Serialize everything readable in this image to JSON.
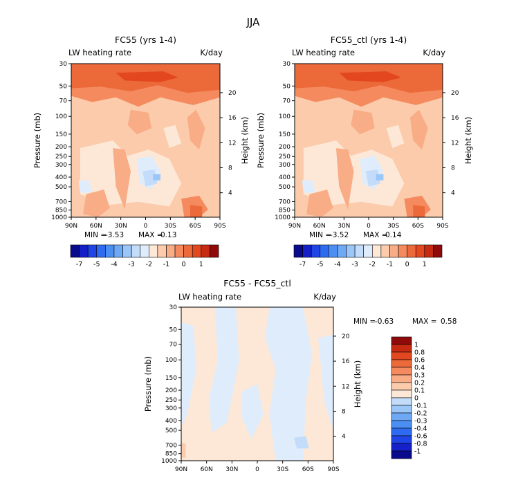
{
  "figure_title": "JJA",
  "colors": {
    "levels": [
      "#0a0a8c",
      "#1520c8",
      "#1f45e6",
      "#2f6bf0",
      "#4c8ff2",
      "#6ea9f5",
      "#9bc6f8",
      "#c3dcf9",
      "#dfecfb",
      "#fde8d7",
      "#fbcbab",
      "#f8ad86",
      "#f48a5e",
      "#ec6939",
      "#e3471f",
      "#c72a12",
      "#8f0a0a"
    ]
  },
  "chart_data": [
    {
      "type": "heatmap",
      "title": "FC55 (yrs 1-4)",
      "variable_label": "LW heating rate",
      "units_label": "K/day",
      "ylabel": "Pressure (mb)",
      "ylabel_right": "Height (km)",
      "x_ticks": [
        "90N",
        "60N",
        "30N",
        "0",
        "30S",
        "60S",
        "90S"
      ],
      "y_ticks": [
        "30",
        "50",
        "70",
        "100",
        "150",
        "200",
        "250",
        "300",
        "400",
        "500",
        "700",
        "850",
        "1000"
      ],
      "y_right_ticks": [
        "20",
        "16",
        "12",
        "8",
        "4"
      ],
      "ylim": [
        1000,
        30
      ],
      "stats": {
        "min_label": "MIN =",
        "min": "-3.53",
        "max_label": "MAX =",
        "max": "0.13"
      },
      "colorbar_labels": [
        "-7",
        "-5",
        "-4",
        "-3",
        "-2",
        "-1",
        "0",
        "1"
      ]
    },
    {
      "type": "heatmap",
      "title": "FC55_ctl (yrs 1-4)",
      "variable_label": "LW heating rate",
      "units_label": "K/day",
      "ylabel": "Pressure (mb)",
      "ylabel_right": "Height (km)",
      "x_ticks": [
        "90N",
        "60N",
        "30N",
        "0",
        "30S",
        "60S",
        "90S"
      ],
      "y_ticks": [
        "30",
        "50",
        "70",
        "100",
        "150",
        "200",
        "250",
        "300",
        "400",
        "500",
        "700",
        "850",
        "1000"
      ],
      "y_right_ticks": [
        "20",
        "16",
        "12",
        "8",
        "4"
      ],
      "ylim": [
        1000,
        30
      ],
      "stats": {
        "min_label": "MIN =",
        "min": "-3.52",
        "max_label": "MAX =",
        "max": "0.14"
      },
      "colorbar_labels": [
        "-7",
        "-5",
        "-4",
        "-3",
        "-2",
        "-1",
        "0",
        "1"
      ]
    },
    {
      "type": "heatmap",
      "title": "FC55 - FC55_ctl",
      "variable_label": "LW heating rate",
      "units_label": "K/day",
      "ylabel": "Pressure (mb)",
      "ylabel_right": "Height (km)",
      "x_ticks": [
        "90N",
        "60N",
        "30N",
        "0",
        "30S",
        "60S",
        "90S"
      ],
      "y_ticks": [
        "30",
        "50",
        "70",
        "100",
        "150",
        "200",
        "250",
        "300",
        "400",
        "500",
        "700",
        "850",
        "1000"
      ],
      "y_right_ticks": [
        "20",
        "16",
        "12",
        "8",
        "4"
      ],
      "ylim": [
        1000,
        30
      ],
      "stats": {
        "min_label": "MIN =",
        "min": "-0.63",
        "max_label": "MAX =",
        "max": "0.58"
      },
      "colorbar_labels": [
        "1",
        "0.8",
        "0.6",
        "0.4",
        "0.3",
        "0.2",
        "0.1",
        "0",
        "-0.1",
        "-0.2",
        "-0.3",
        "-0.4",
        "-0.6",
        "-0.8",
        "-1"
      ]
    }
  ]
}
